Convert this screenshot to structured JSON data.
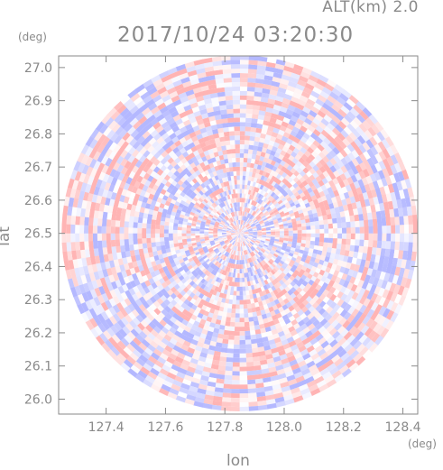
{
  "header": {
    "altitude_label": "ALT(km) 2.0",
    "datetime": "2017/10/24 03:20:30",
    "y_unit": "(deg)",
    "x_unit": "(deg)"
  },
  "chart_data": {
    "type": "heatmap",
    "title": "2017/10/24 03:20:30",
    "subtitle": "ALT(km) 2.0",
    "xlabel": "lon",
    "ylabel": "lat",
    "x_unit": "(deg)",
    "y_unit": "(deg)",
    "xlim": [
      127.24,
      128.45
    ],
    "ylim": [
      25.955,
      27.035
    ],
    "x_ticks": [
      127.4,
      127.6,
      127.8,
      128.0,
      128.2,
      128.4
    ],
    "x_tick_labels": [
      "127.4",
      "127.6",
      "127.8",
      "128.0",
      "128.2",
      "128.4"
    ],
    "y_ticks": [
      26.0,
      26.1,
      26.2,
      26.3,
      26.4,
      26.5,
      26.6,
      26.7,
      26.8,
      26.9,
      27.0
    ],
    "y_tick_labels": [
      "26.0",
      "26.1",
      "26.2",
      "26.3",
      "26.4",
      "26.5",
      "26.6",
      "26.7",
      "26.8",
      "26.9",
      "27.0"
    ],
    "domain_center": {
      "lon": 127.85,
      "lat": 26.5
    },
    "domain_radius_deg_lon": 0.6,
    "grid": false,
    "legend": "none",
    "colors": {
      "positive": "#ffb4b4",
      "negative": "#b4b8ff",
      "neutral": "#ffffff",
      "axis": "#8a8a8a"
    }
  }
}
